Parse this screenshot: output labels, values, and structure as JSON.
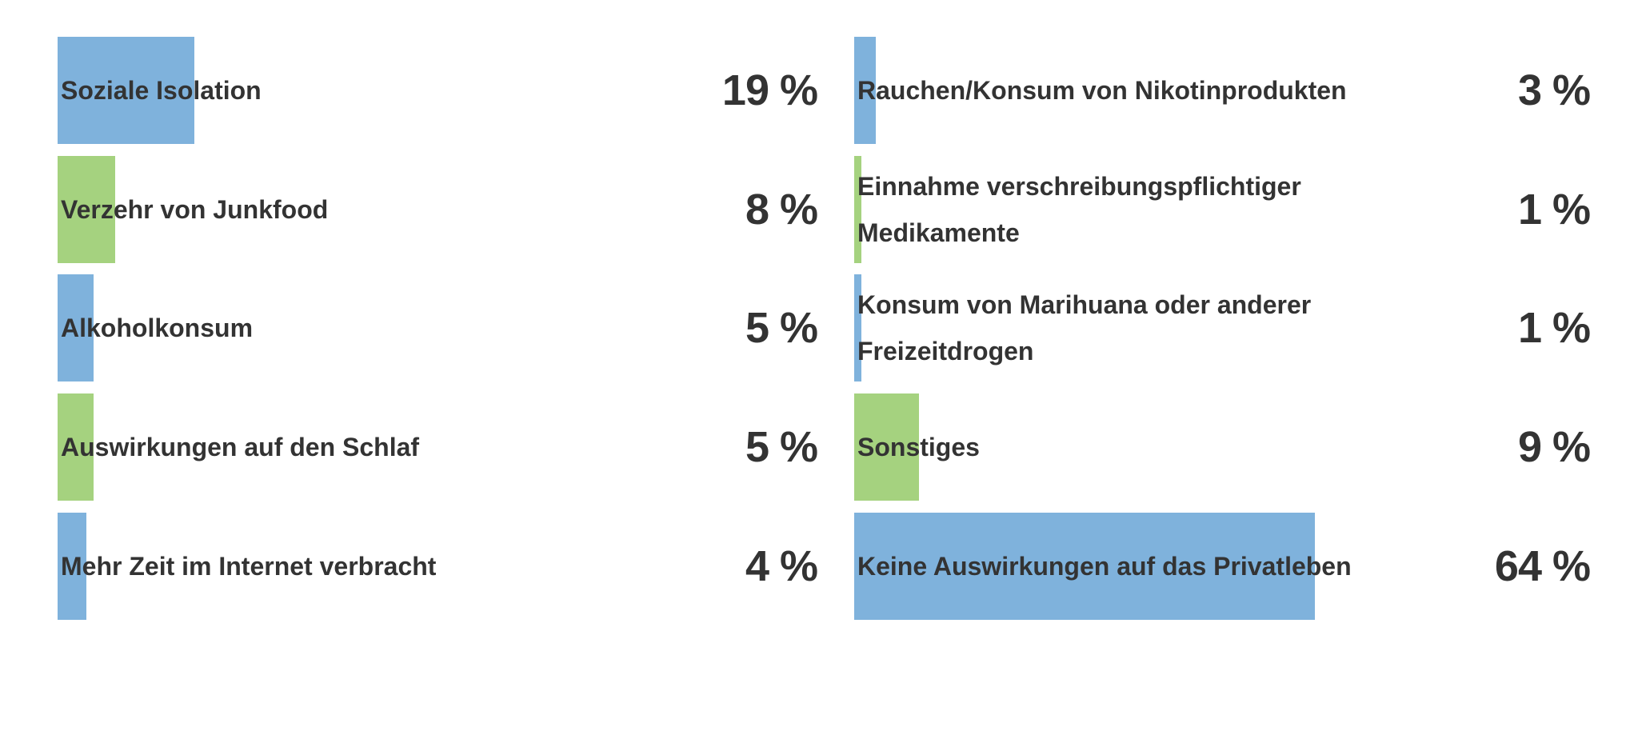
{
  "chart_data": {
    "type": "bar",
    "orientation": "horizontal",
    "categories": [
      "Soziale Isolation",
      "Verzehr von Junkfood",
      "Alkoholkonsum",
      "Auswirkungen auf den Schlaf",
      "Mehr Zeit im Internet verbracht",
      "Rauchen/Konsum von Nikotinprodukten",
      "Einnahme verschreibungspflichtiger Medikamente",
      "Konsum von Marihuana oder anderer Freizeitdrogen",
      "Sonstiges",
      "Keine Auswirkungen auf das Privatleben"
    ],
    "values": [
      19,
      8,
      5,
      5,
      4,
      3,
      1,
      1,
      9,
      64
    ],
    "value_labels": [
      "19 %",
      "8 %",
      "5 %",
      "5 %",
      "4 %",
      "3 %",
      "1 %",
      "1 %",
      "9 %",
      "64 %"
    ],
    "colors": [
      "#7fb2dc",
      "#a5d27f",
      "#7fb2dc",
      "#a5d27f",
      "#7fb2dc",
      "#7fb2dc",
      "#a5d27f",
      "#7fb2dc",
      "#a5d27f",
      "#7fb2dc"
    ]
  }
}
